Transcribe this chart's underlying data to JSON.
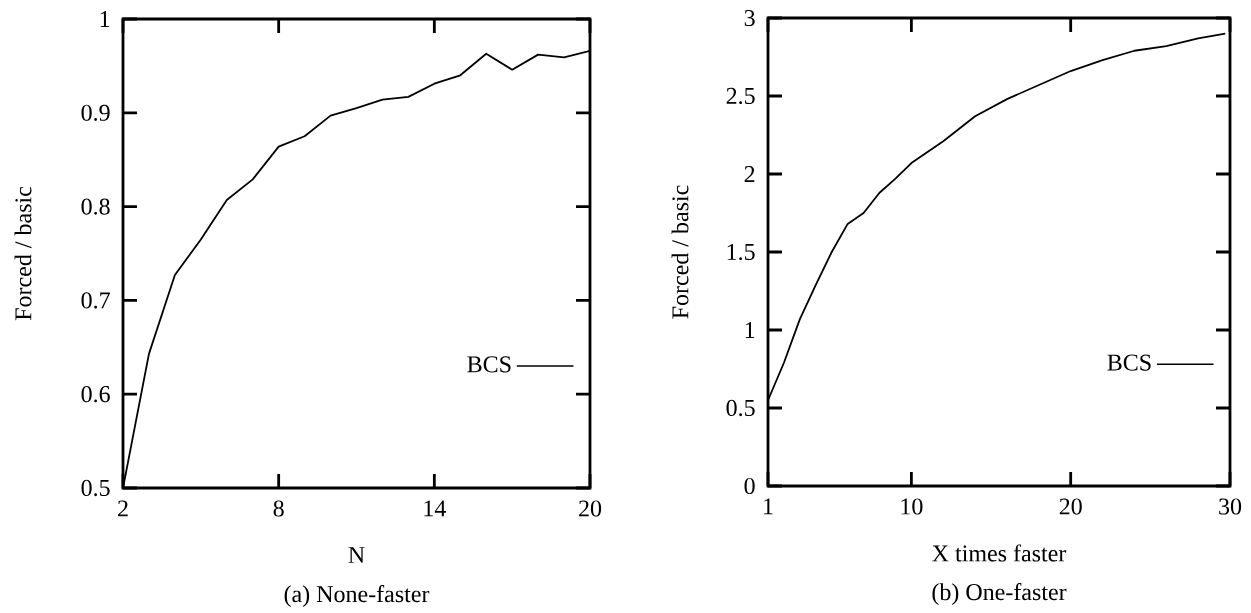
{
  "chart_data": [
    {
      "type": "line",
      "title": "(a) None-faster",
      "xlabel": "N",
      "ylabel": "Forced / basic",
      "x": [
        2,
        3,
        4,
        5,
        6,
        7,
        8,
        9,
        10,
        11,
        12,
        13,
        14,
        15,
        16,
        17,
        18,
        19,
        20
      ],
      "series": [
        {
          "name": "BCS",
          "color": "#000000",
          "values": [
            0.5,
            0.643,
            0.727,
            0.765,
            0.807,
            0.829,
            0.864,
            0.875,
            0.897,
            0.905,
            0.914,
            0.917,
            0.931,
            0.94,
            0.963,
            0.946,
            0.962,
            0.959,
            0.966
          ]
        }
      ],
      "xlim": [
        2,
        20
      ],
      "ylim": [
        0.5,
        1
      ],
      "xticks": [
        2,
        8,
        14,
        20
      ],
      "yticks": [
        0.5,
        0.6,
        0.7,
        0.8,
        0.9,
        1
      ],
      "legend": "bottom right"
    },
    {
      "type": "line",
      "title": "(b) One-faster",
      "xlabel": "X times faster",
      "ylabel": "Forced / basic",
      "x": [
        1,
        2,
        3,
        4,
        5,
        6,
        7,
        8,
        9,
        10,
        12,
        14,
        16,
        18,
        20,
        22,
        24,
        26,
        28,
        29.7
      ],
      "series": [
        {
          "name": "BCS",
          "color": "#000000",
          "values": [
            0.55,
            0.79,
            1.07,
            1.29,
            1.5,
            1.68,
            1.75,
            1.88,
            1.97,
            2.07,
            2.21,
            2.37,
            2.48,
            2.57,
            2.66,
            2.73,
            2.79,
            2.82,
            2.87,
            2.9
          ]
        }
      ],
      "xlim": [
        1,
        30
      ],
      "ylim": [
        0,
        3
      ],
      "xticks": [
        1,
        10,
        20,
        30
      ],
      "yticks": [
        0,
        0.5,
        1,
        1.5,
        2,
        2.5,
        3
      ],
      "legend": "bottom right"
    }
  ]
}
